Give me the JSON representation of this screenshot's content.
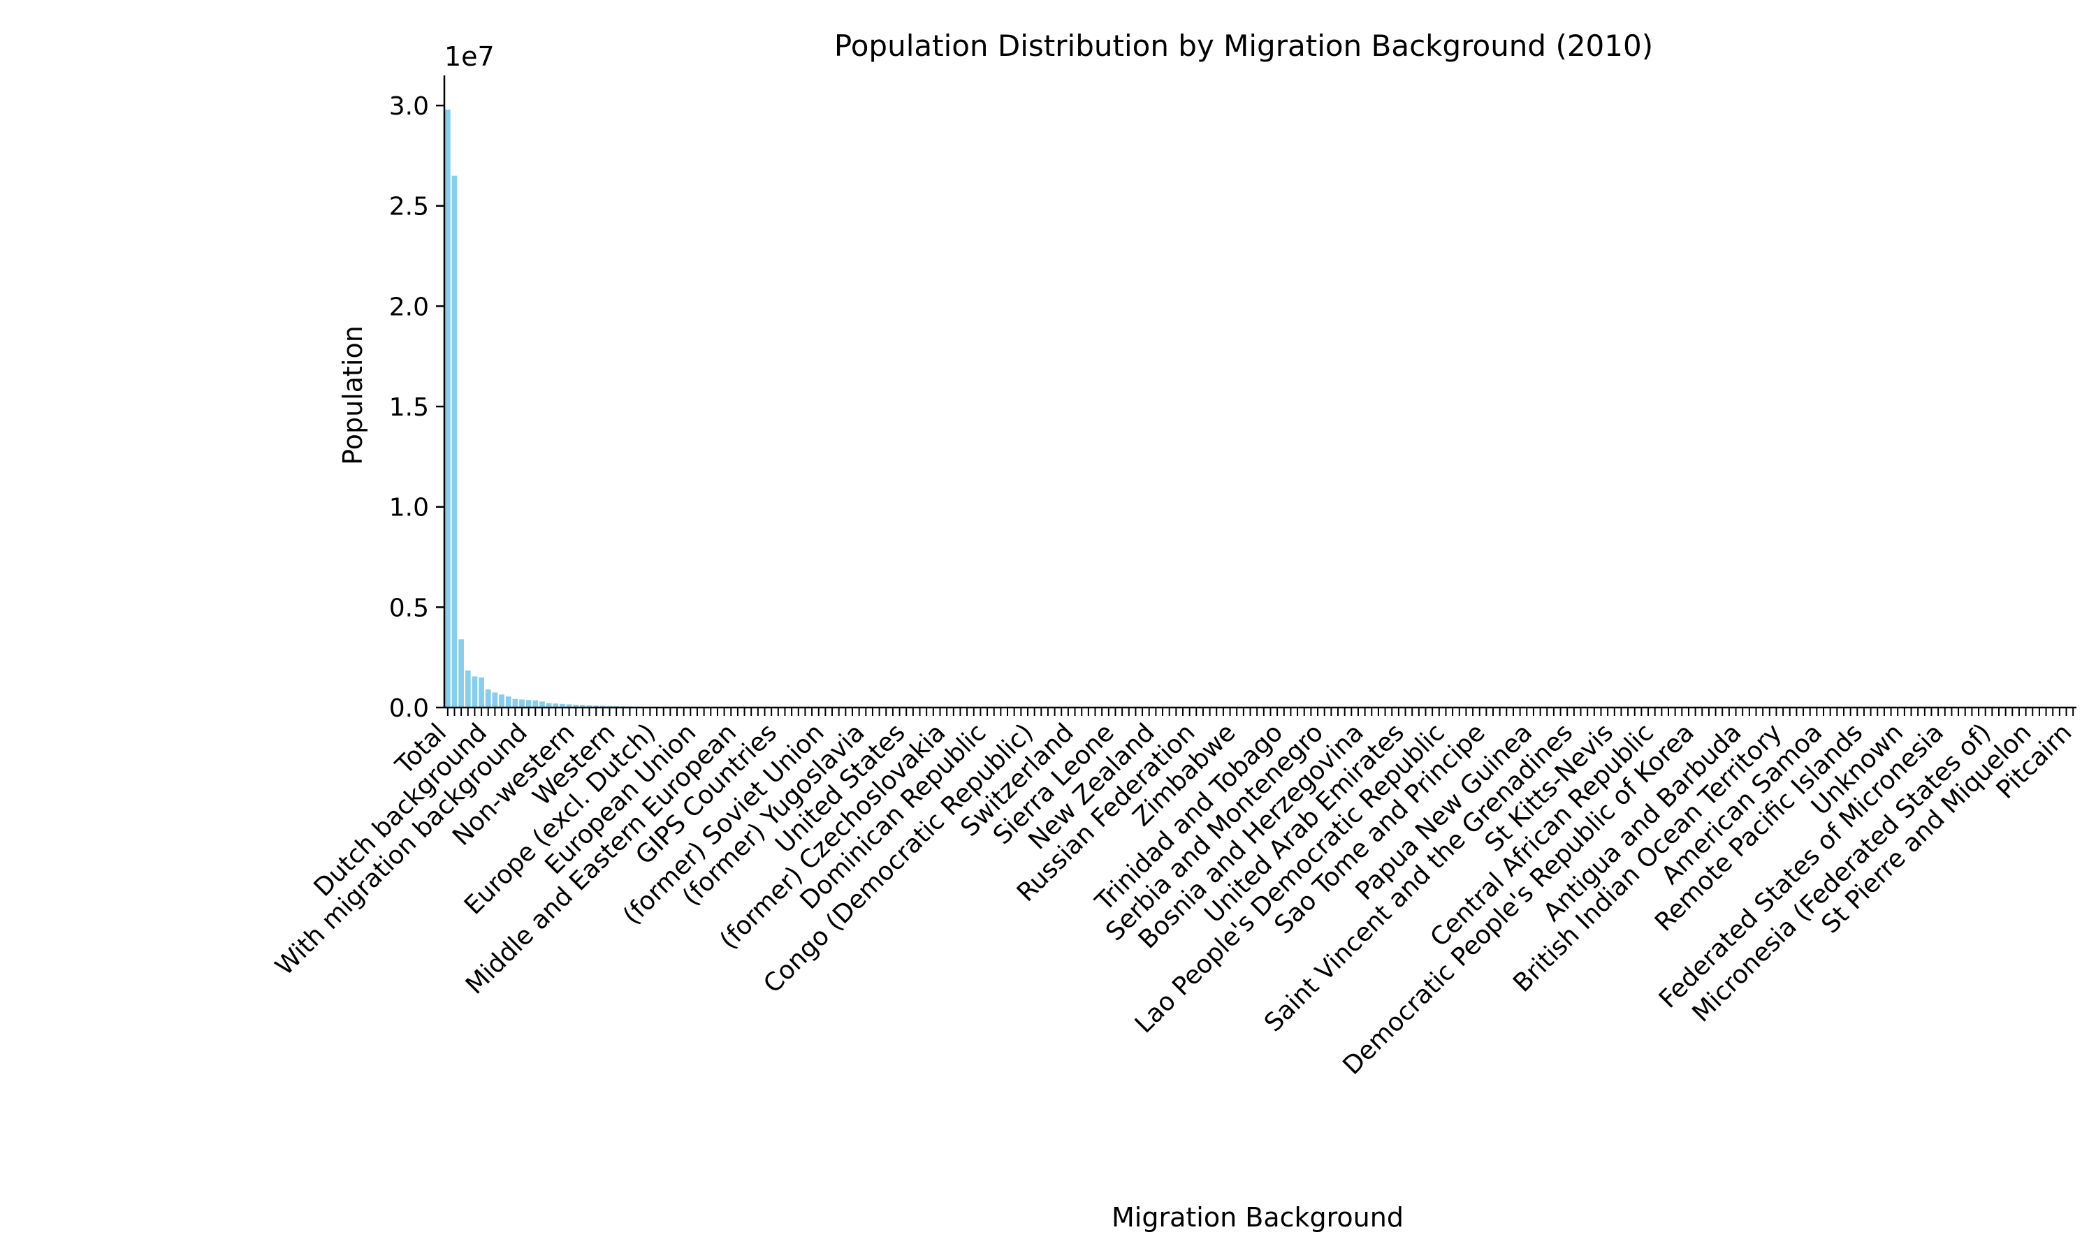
{
  "chart_data": {
    "type": "bar",
    "title": "Population Distribution by Migration Background (2010)",
    "xlabel": "Migration Background",
    "ylabel": "Population",
    "y_offset_label": "1e7",
    "ylim": [
      0,
      31500000
    ],
    "yticks": [
      0,
      5000000,
      10000000,
      15000000,
      20000000,
      25000000,
      30000000
    ],
    "ytick_labels": [
      "0.0",
      "0.5",
      "1.0",
      "1.5",
      "2.0",
      "2.5",
      "3.0"
    ],
    "bar_color": "#87ceeb",
    "grid": false,
    "legend": "none",
    "category_count": 242,
    "visible_tick_labels": [
      "Total",
      "Dutch background",
      "With migration background",
      "Non-western",
      "Western",
      "Europe (excl. Dutch)",
      "European Union",
      "Middle and Eastern European",
      "GIPS Countries",
      "(former) Soviet Union",
      "(former) Yugoslavia",
      "United States",
      "(former) Czechoslovakia",
      "Dominican Republic",
      "Congo (Democratic Republic)",
      "Switzerland",
      "Sierra Leone",
      "New Zealand",
      "Russian Federation",
      "Zimbabwe",
      "Trinidad and Tobago",
      "Serbia and Montenegro",
      "Bosnia and Herzegovina",
      "United Arab Emirates",
      "Lao People's Democratic Republic",
      "Sao Tome and Principe",
      "Papua New Guinea",
      "Saint Vincent and the Grenadines",
      "St Kitts-Nevis",
      "Central African Republic",
      "Democratic People's Republic of Korea",
      "Antigua and Barbuda",
      "British Indian Ocean Territory",
      "American Samoa",
      "Remote Pacific Islands",
      "Unknown",
      "Federated States of Micronesia",
      "Micronesia (Federated States of)",
      "St Pierre and Miquelon",
      "Pitcairn"
    ],
    "values": [
      29800000,
      26500000,
      3400000,
      1850000,
      1550000,
      1500000,
      900000,
      750000,
      650000,
      550000,
      430000,
      400000,
      380000,
      360000,
      300000,
      220000,
      200000,
      180000,
      160000,
      140000,
      125000,
      110000,
      95000,
      85000,
      75000,
      65000,
      58000,
      52000,
      46000,
      40000,
      36000,
      32000,
      28000,
      25000,
      22000,
      20000,
      18000,
      16000,
      14500,
      13000,
      12000,
      11000,
      10000,
      9200,
      8500,
      7800,
      7200,
      6600,
      6100,
      5600,
      5200,
      4800,
      4400,
      4100,
      3800,
      3500,
      3250,
      3000,
      2800,
      2600,
      2400,
      2200,
      2050,
      1900,
      1750,
      1600,
      1500,
      1400,
      1300,
      1200,
      1100,
      1000,
      950,
      900,
      850,
      800,
      750,
      700,
      660,
      620,
      580,
      540,
      510,
      480,
      450,
      420,
      400,
      380,
      360,
      340,
      320,
      300,
      285,
      270,
      255,
      240,
      225,
      210,
      200,
      190,
      180,
      170,
      160,
      150,
      142,
      134,
      126,
      118,
      110,
      104,
      98,
      92,
      86,
      80,
      75,
      70,
      66,
      62,
      58,
      54,
      50,
      47,
      44,
      41,
      38,
      36,
      34,
      32,
      30,
      28,
      26,
      24,
      22,
      21,
      20,
      19,
      18,
      17,
      16,
      15,
      14,
      13,
      12,
      11,
      10,
      10,
      9,
      9,
      8,
      8,
      7,
      7,
      6,
      6,
      6,
      5,
      5,
      5,
      5,
      4,
      4,
      4,
      4,
      3,
      3,
      3,
      3,
      3,
      3,
      2,
      2,
      2,
      2,
      2,
      2,
      2,
      2,
      2,
      2,
      1,
      1,
      1,
      1,
      1,
      1,
      1,
      1,
      1,
      1,
      1,
      1,
      1,
      1,
      1,
      1,
      1,
      1,
      1,
      1,
      1,
      1,
      1,
      1,
      1,
      1,
      1,
      1,
      1,
      1,
      1,
      1,
      1,
      1,
      1,
      1,
      1,
      1,
      1,
      1,
      1,
      1,
      1,
      1,
      1,
      1,
      1,
      1,
      1,
      1,
      1,
      1,
      1,
      1,
      1,
      1,
      1,
      1,
      1,
      1,
      1,
      1,
      1,
      1,
      1,
      1,
      1,
      1,
      1,
      1,
      1
    ]
  }
}
